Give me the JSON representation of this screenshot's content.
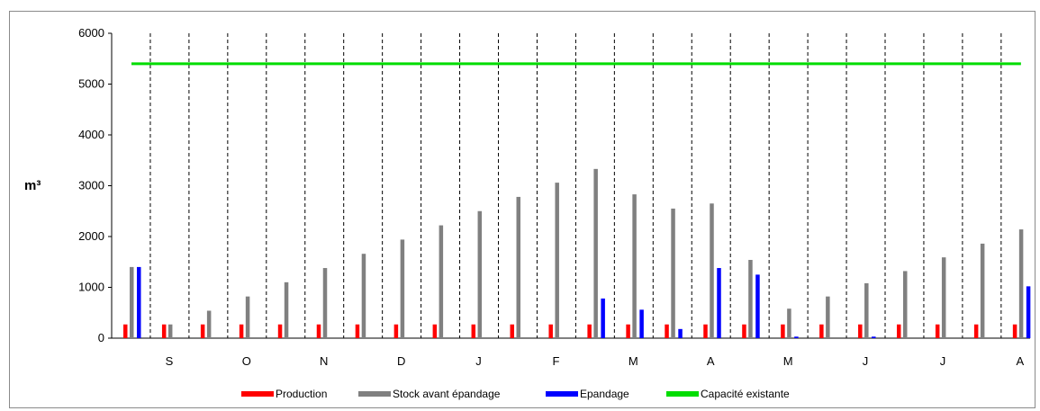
{
  "chart_data": {
    "type": "bar",
    "ylabel": "m³",
    "ylim": [
      0,
      6000
    ],
    "yticks": [
      0,
      1000,
      2000,
      3000,
      4000,
      5000,
      6000
    ],
    "month_labels": [
      "S",
      "O",
      "N",
      "D",
      "J",
      "F",
      "M",
      "A",
      "M",
      "J",
      "J",
      "A"
    ],
    "series": [
      {
        "name": "Production",
        "color": "#ff0000",
        "values": [
          270,
          270,
          270,
          270,
          270,
          270,
          270,
          270,
          270,
          270,
          270,
          270,
          270,
          270,
          270,
          270,
          270,
          270,
          270,
          270,
          270,
          270,
          270,
          270
        ]
      },
      {
        "name": "Stock avant épandage",
        "color": "#808080",
        "values": [
          1400,
          270,
          540,
          820,
          1100,
          1380,
          1660,
          1940,
          2220,
          2500,
          2780,
          3060,
          3330,
          2830,
          2550,
          2650,
          1540,
          580,
          820,
          1080,
          1320,
          1590,
          1860,
          2140
        ]
      },
      {
        "name": "Epandage",
        "color": "#0000ff",
        "values": [
          1400,
          0,
          0,
          0,
          0,
          0,
          0,
          0,
          0,
          0,
          0,
          0,
          780,
          560,
          180,
          1380,
          1250,
          30,
          0,
          30,
          0,
          0,
          0,
          1020
        ]
      }
    ],
    "capacity": {
      "name": "Capacité existante",
      "color": "#00dd00",
      "value": 5400
    },
    "legend_position": "bottom"
  }
}
